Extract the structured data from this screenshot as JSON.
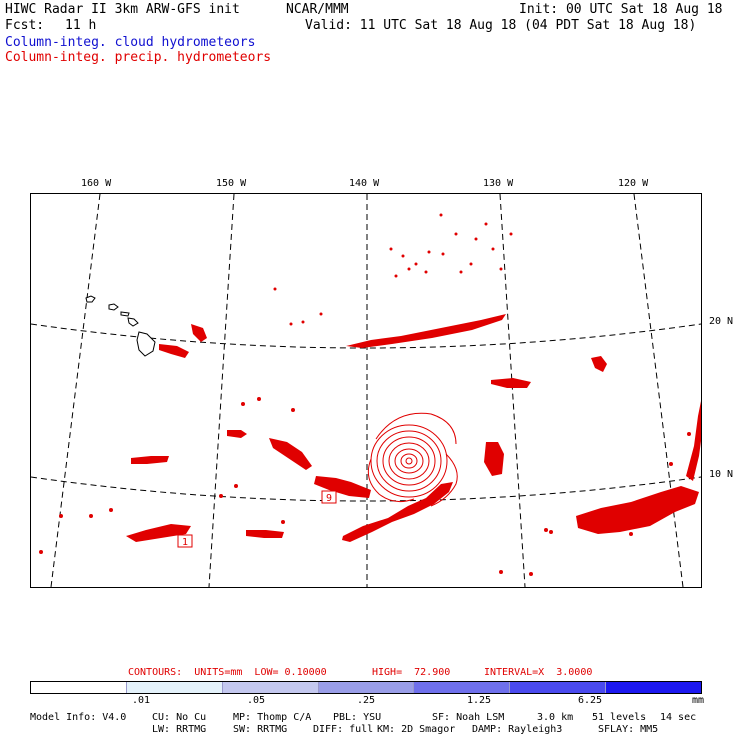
{
  "header": {
    "title": "HIWC Radar II 3km ARW-GFS init",
    "org": "NCAR/MMM",
    "init": "Init: 00 UTC Sat 18 Aug 18",
    "fcst_label": "Fcst:",
    "fcst_value": "11 h",
    "valid": "Valid: 11 UTC Sat 18 Aug 18 (04 PDT Sat 18 Aug 18)",
    "field_cloud": "Column-integ. cloud hydrometeors",
    "field_precip": "Column-integ. precip. hydrometeors"
  },
  "map": {
    "lon_labels": [
      "160 W",
      "150 W",
      "140 W",
      "130 W",
      "120 W"
    ],
    "lat_labels": [
      "20 N",
      "10 N"
    ],
    "box_labels": [
      "9",
      "1"
    ],
    "contour_color": "#e00000",
    "coast_color": "#000000"
  },
  "contours": {
    "units_text": "CONTOURS:  UNITS=mm  LOW= 0.10000",
    "high_text": "HIGH=  72.900",
    "interval_text": "INTERVAL=X  3.0000"
  },
  "colorbar": {
    "colors": [
      "#ffffff",
      "#e4f2fb",
      "#c4c8ef",
      "#9a9ee8",
      "#6f70ec",
      "#4a4aee",
      "#1c18f0"
    ],
    "labels": [
      ".01",
      ".05",
      ".25",
      "1.25",
      "6.25",
      "mm"
    ]
  },
  "model_info": {
    "line1": [
      "Model Info: V4.0",
      "CU: No Cu",
      "MP: Thomp C/A",
      "PBL: YSU",
      "SF: Noah LSM",
      "3.0 km",
      "51 levels",
      "14 sec"
    ],
    "line2": [
      "LW: RRTMG",
      "SW: RRTMG",
      "DIFF: full",
      "KM: 2D Smagor",
      "DAMP: Rayleigh3",
      "SFLAY: MM5"
    ]
  }
}
